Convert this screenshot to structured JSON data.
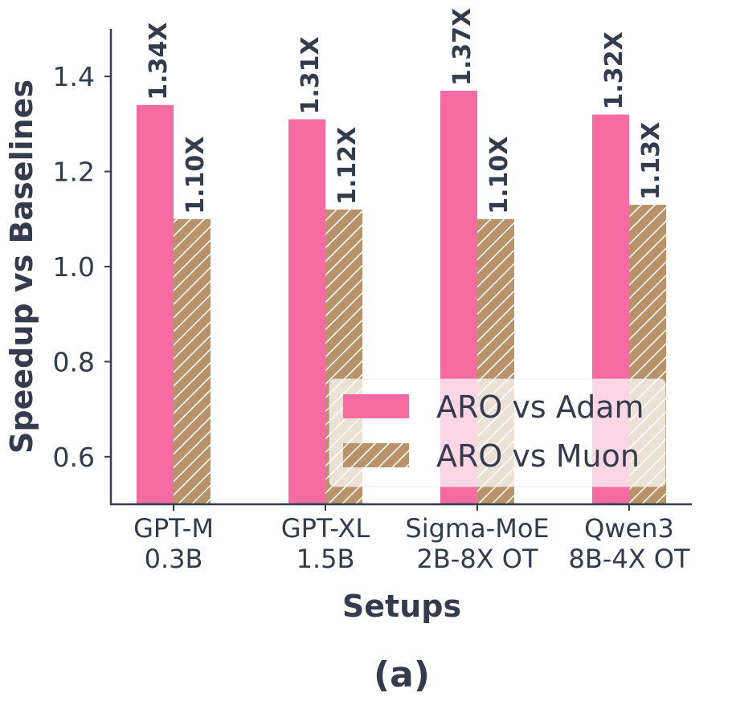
{
  "caption": "(a)",
  "colors": {
    "series1": "#f66ba1",
    "series2": "#b8936a",
    "hatch": "#ffffff",
    "axis": "#333b4d",
    "text": "#333b4d"
  },
  "chart_data": {
    "type": "bar",
    "title": "",
    "xlabel": "Setups",
    "ylabel": "Speedup vs Baselines",
    "ylim": [
      0.5,
      1.5
    ],
    "yticks": [
      "0.6",
      "0.8",
      "1.0",
      "1.2",
      "1.4"
    ],
    "categories": [
      [
        "GPT-M",
        "0.3B"
      ],
      [
        "GPT-XL",
        "1.5B"
      ],
      [
        "Sigma-MoE",
        "2B-8X OT"
      ],
      [
        "Qwen3",
        "8B-4X OT"
      ]
    ],
    "series": [
      {
        "name": "ARO vs Adam",
        "values": [
          1.34,
          1.31,
          1.37,
          1.32
        ],
        "labels": [
          "1.34X",
          "1.31X",
          "1.37X",
          "1.32X"
        ],
        "pattern": "solid"
      },
      {
        "name": "ARO vs Muon",
        "values": [
          1.1,
          1.12,
          1.1,
          1.13
        ],
        "labels": [
          "1.10X",
          "1.12X",
          "1.10X",
          "1.13X"
        ],
        "pattern": "hatch"
      }
    ],
    "legend_position": "bottom-right",
    "grid": false
  }
}
